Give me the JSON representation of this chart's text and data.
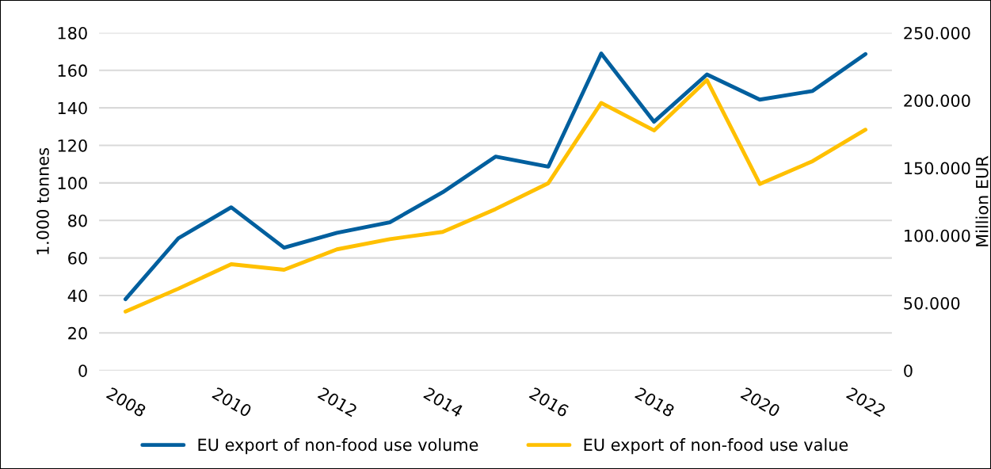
{
  "chart_data": {
    "type": "line",
    "categories": [
      "2008",
      null,
      "2010",
      null,
      "2012",
      null,
      "2014",
      null,
      "2016",
      null,
      "2018",
      null,
      "2020",
      null,
      "2022"
    ],
    "series": [
      {
        "name": "EU export of non-food use volume",
        "color": "#005f9e",
        "values": [
          38,
          70.5,
          87,
          65.5,
          73.4,
          79,
          95,
          114,
          108.7,
          169,
          132.6,
          157.8,
          144.4,
          149,
          168.7
        ]
      },
      {
        "name": "EU export of non-food use value",
        "color": "#ffc000",
        "axis": "y2",
        "values": [
          43700,
          60600,
          78700,
          74600,
          89700,
          97300,
          102600,
          119500,
          138700,
          198100,
          177700,
          215000,
          138100,
          155000,
          178300
        ]
      }
    ],
    "ylabel": "1.000 tonnes",
    "y2label": "Million EUR",
    "ylim": [
      0,
      180
    ],
    "yticks": [
      0,
      20,
      40,
      60,
      80,
      100,
      120,
      140,
      160,
      180
    ],
    "y2lim": [
      0,
      250000
    ],
    "y2ticks": [
      {
        "value": 0,
        "label": "0"
      },
      {
        "value": 50000,
        "label": "50.000"
      },
      {
        "value": 100000,
        "label": "100.000"
      },
      {
        "value": 150000,
        "label": "150.000"
      },
      {
        "value": 200000,
        "label": "200.000"
      },
      {
        "value": 250000,
        "label": "250.000"
      }
    ],
    "grid": "y",
    "legend": "bottom",
    "marker": "none",
    "line_style": "solid"
  }
}
